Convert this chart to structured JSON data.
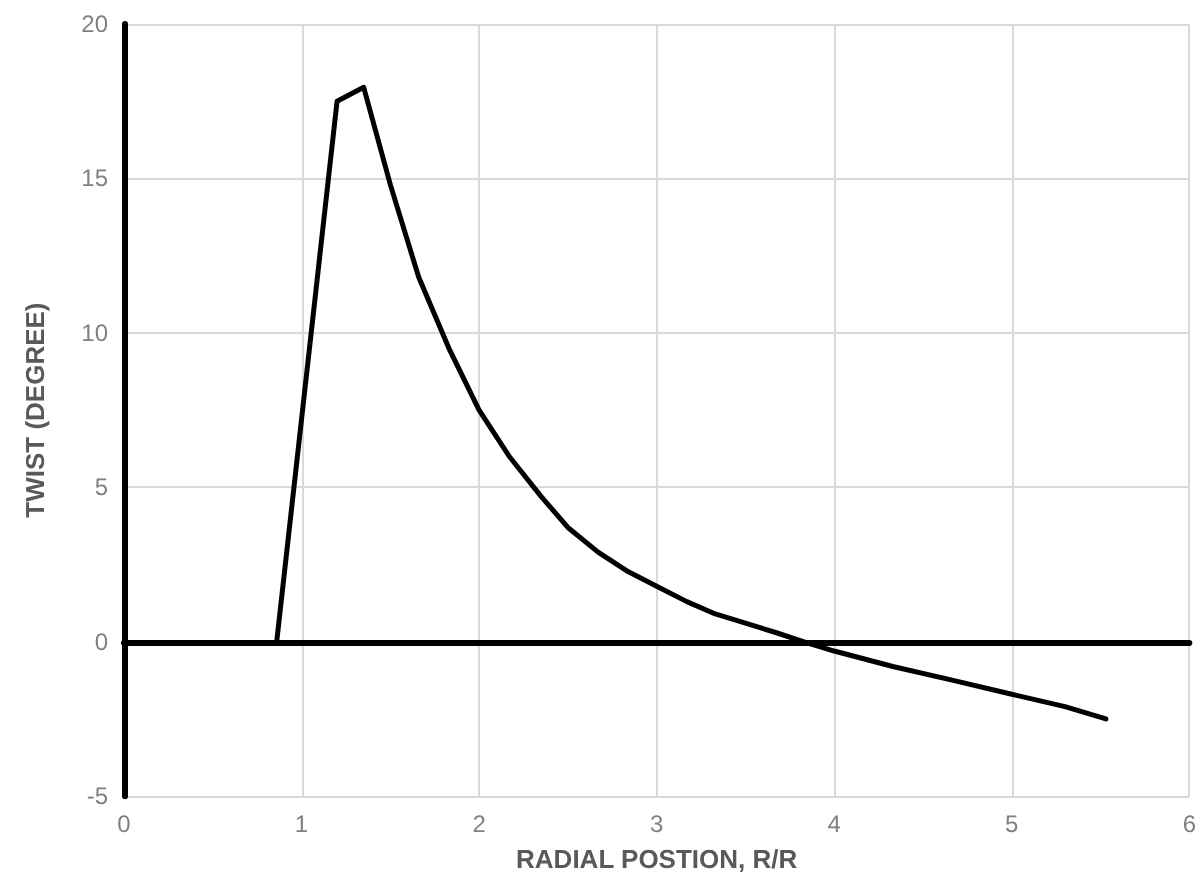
{
  "chart_data": {
    "type": "line",
    "xlabel": "RADIAL POSTION, R/R",
    "ylabel": "TWIST (DEGREE)",
    "x": [
      0.86,
      1.2,
      1.35,
      1.5,
      1.66,
      1.83,
      2.0,
      2.17,
      2.35,
      2.5,
      2.67,
      2.83,
      3.0,
      3.17,
      3.33,
      3.5,
      3.67,
      3.83,
      4.0,
      4.33,
      4.67,
      5.0,
      5.3,
      5.53
    ],
    "series": [
      {
        "color": "#000000",
        "values": [
          0,
          17.5,
          17.95,
          14.8,
          11.8,
          9.5,
          7.5,
          6.0,
          4.7,
          3.7,
          2.9,
          2.3,
          1.8,
          1.3,
          0.9,
          0.6,
          0.3,
          0,
          -0.3,
          -0.8,
          -1.25,
          -1.7,
          -2.1,
          -2.5
        ]
      }
    ],
    "xlim": [
      0,
      6
    ],
    "xticks": [
      0,
      1,
      2,
      3,
      4,
      5,
      6
    ],
    "ylim": [
      -5,
      20
    ],
    "yticks": [
      -5,
      0,
      5,
      10,
      15,
      20
    ],
    "grid": true,
    "marker": "none",
    "line_style": "solid"
  }
}
